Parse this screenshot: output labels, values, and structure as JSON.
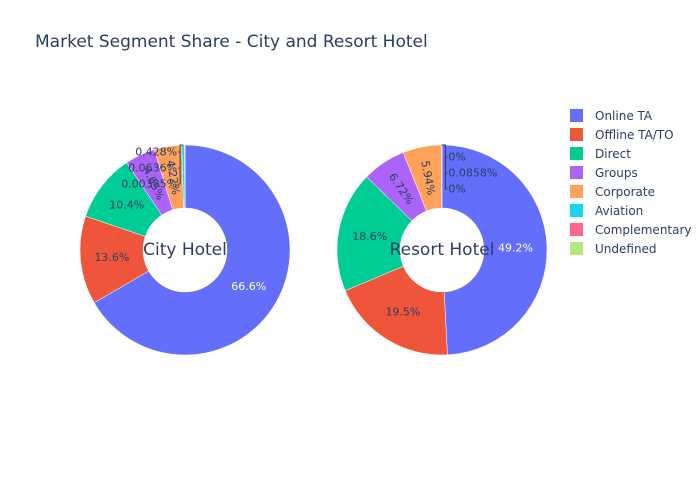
{
  "chart_data": {
    "type": "pie",
    "title": "Market Segment Share - City and Resort Hotel",
    "legend_position": "top-right",
    "categories": [
      "Online TA",
      "Offline TA/TO",
      "Direct",
      "Groups",
      "Corporate",
      "Aviation",
      "Complementary",
      "Undefined"
    ],
    "colors": [
      "#636efa",
      "#ef553b",
      "#00cc96",
      "#ab63fa",
      "#ffa15a",
      "#19d3f3",
      "#ff6692",
      "#b6e880"
    ],
    "series": [
      {
        "name": "City Hotel",
        "values": [
          66.6,
          13.6,
          10.4,
          4.65,
          4.22,
          0.428,
          0.0636,
          0.00385
        ],
        "labels": [
          "66.6%",
          "13.6%",
          "10.4%",
          "4.65%",
          "4.22%",
          "0.428%",
          "0.0636%",
          "0.00385%"
        ]
      },
      {
        "name": "Resort Hotel",
        "values": [
          49.2,
          19.5,
          18.6,
          6.72,
          5.94,
          0,
          0.0858,
          0
        ],
        "labels": [
          "49.2%",
          "19.5%",
          "18.6%",
          "6.72%",
          "5.94%",
          "0%",
          "0.0858%",
          "0%"
        ]
      }
    ]
  }
}
